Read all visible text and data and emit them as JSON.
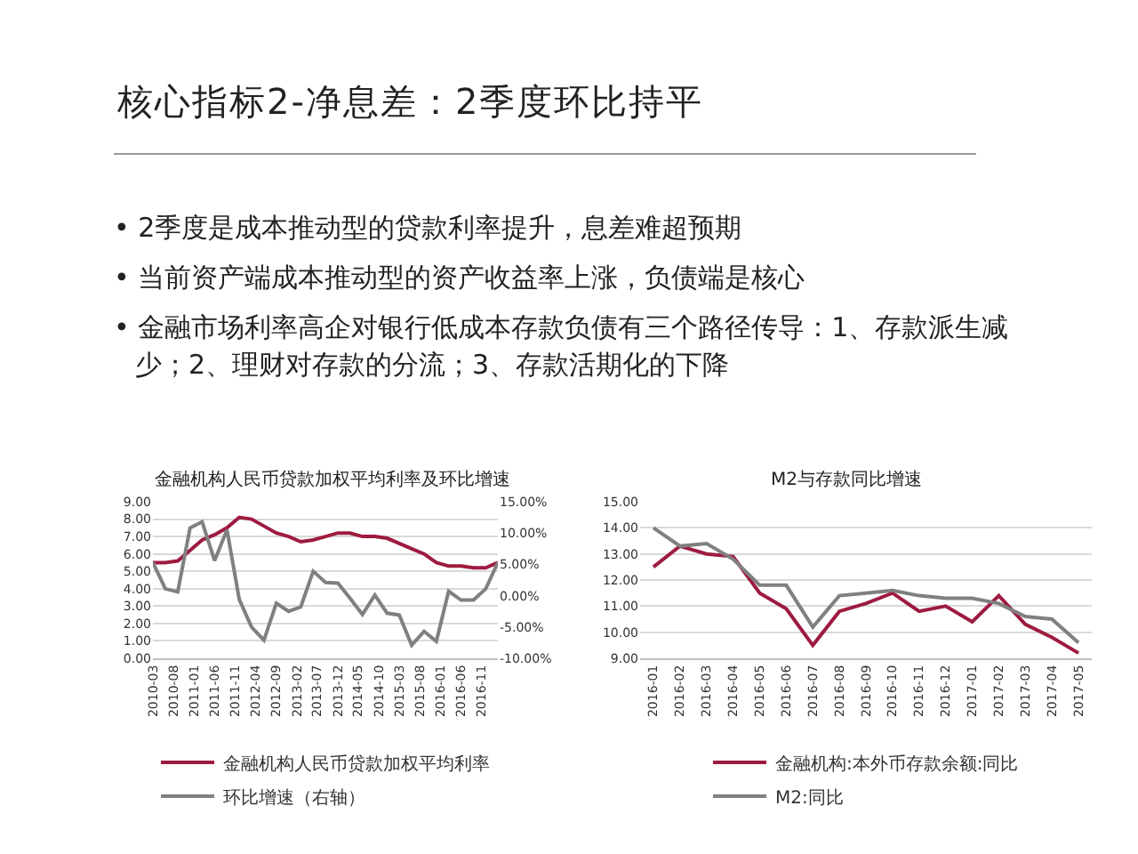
{
  "chart_data": [
    {
      "type": "other",
      "title": "核心指标2-净息差：2季度环比持平",
      "annotations": [
        "• 2季度是成本推动型的贷款利率提升，息差难超预期",
        "• 当前资产端成本推动型的资产收益率上涨，负债端是核心",
        "• 金融市场利率高企对银行低成本存款负债有三个路径传导：1、存款派生减少；2、理财对存款的分流；3、存款活期化的下降"
      ]
    },
    {
      "type": "line",
      "title": "金融机构人民币贷款加权平均利率及环比增速",
      "x": [
        "2010-03",
        "2010-06",
        "2010-09",
        "2010-12",
        "2011-03",
        "2011-06",
        "2011-09",
        "2011-12",
        "2012-03",
        "2012-06",
        "2012-09",
        "2012-12",
        "2013-03",
        "2013-06",
        "2013-09",
        "2013-12",
        "2014-03",
        "2014-06",
        "2014-09",
        "2014-12",
        "2015-03",
        "2015-06",
        "2015-09",
        "2015-12",
        "2016-03",
        "2016-06",
        "2016-09",
        "2016-12",
        "2017-03"
      ],
      "series": [
        {
          "name": "金融机构人民币贷款加权平均利率",
          "color": "#9e1b40",
          "values": [
            5.5,
            5.5,
            5.6,
            6.2,
            6.8,
            7.1,
            7.5,
            8.1,
            8.0,
            7.6,
            7.2,
            7.0,
            6.7,
            6.8,
            7.0,
            7.2,
            7.2,
            7.0,
            7.0,
            6.9,
            6.6,
            6.3,
            6.0,
            5.5,
            5.3,
            5.3,
            5.2,
            5.2,
            5.5
          ]
        },
        {
          "name": "环比增速（右轴）",
          "color": "#808080",
          "axis": "y2",
          "values": [
            5.3,
            1.1,
            0.6,
            10.8,
            11.8,
            5.6,
            10.5,
            -0.6,
            -5.0,
            -7.1,
            -1.2,
            -2.5,
            -1.8,
            3.9,
            2.1,
            2.0,
            -0.4,
            -3.0,
            0.1,
            -2.8,
            -3.1,
            -7.9,
            -5.7,
            -7.3,
            0.7,
            -0.7,
            -0.7,
            1.1,
            5.3
          ]
        }
      ],
      "xlim": [
        "2010-03",
        "2017-03"
      ],
      "xticks": [
        "2010-03",
        "2010-08",
        "2011-01",
        "2011-06",
        "2011-11",
        "2012-04",
        "2012-09",
        "2013-02",
        "2013-07",
        "2013-12",
        "2014-05",
        "2014-10",
        "2015-03",
        "2015-08",
        "2016-01",
        "2016-06",
        "2016-11"
      ],
      "ylim": [
        0,
        9
      ],
      "yticks": [
        {
          "value": 0,
          "label": "0.00"
        },
        {
          "value": 1,
          "label": "1.00"
        },
        {
          "value": 2,
          "label": "2.00"
        },
        {
          "value": 3,
          "label": "3.00"
        },
        {
          "value": 4,
          "label": "4.00"
        },
        {
          "value": 5,
          "label": "5.00"
        },
        {
          "value": 6,
          "label": "6.00"
        },
        {
          "value": 7,
          "label": "7.00"
        },
        {
          "value": 8,
          "label": "8.00"
        },
        {
          "value": 9,
          "label": "9.00"
        }
      ],
      "y2lim": [
        -10,
        15
      ],
      "y2ticks": [
        {
          "value": -10,
          "label": "-10.00%"
        },
        {
          "value": -5,
          "label": "-5.00%"
        },
        {
          "value": 0,
          "label": "0.00%"
        },
        {
          "value": 5,
          "label": "5.00%"
        },
        {
          "value": 10,
          "label": "10.00%"
        },
        {
          "value": 15,
          "label": "15.00%"
        }
      ],
      "grid": "y",
      "legend": "bottom"
    },
    {
      "type": "line",
      "title": "M2与存款同比增速",
      "categories": [
        "2016-01",
        "2016-02",
        "2016-03",
        "2016-04",
        "2016-05",
        "2016-06",
        "2016-07",
        "2016-08",
        "2016-09",
        "2016-10",
        "2016-11",
        "2016-12",
        "2017-01",
        "2017-02",
        "2017-03",
        "2017-04",
        "2017-05"
      ],
      "series": [
        {
          "name": "金融机构:本外币存款余额:同比",
          "color": "#9e1b40",
          "values": [
            12.5,
            13.3,
            13.0,
            12.9,
            11.5,
            10.9,
            9.5,
            10.8,
            11.1,
            11.5,
            10.8,
            11.0,
            10.4,
            11.4,
            10.3,
            9.8,
            9.2
          ]
        },
        {
          "name": "M2:同比",
          "color": "#808080",
          "values": [
            14.0,
            13.3,
            13.4,
            12.8,
            11.8,
            11.8,
            10.2,
            11.4,
            11.5,
            11.6,
            11.4,
            11.3,
            11.3,
            11.1,
            10.6,
            10.5,
            9.6
          ]
        }
      ],
      "ylim": [
        9,
        15
      ],
      "yticks": [
        {
          "value": 9,
          "label": "9.00"
        },
        {
          "value": 10,
          "label": "10.00"
        },
        {
          "value": 11,
          "label": "11.00"
        },
        {
          "value": 12,
          "label": "12.00"
        },
        {
          "value": 13,
          "label": "13.00"
        },
        {
          "value": 14,
          "label": "14.00"
        },
        {
          "value": 15,
          "label": "15.00"
        }
      ],
      "grid": "y",
      "legend": "bottom"
    }
  ]
}
